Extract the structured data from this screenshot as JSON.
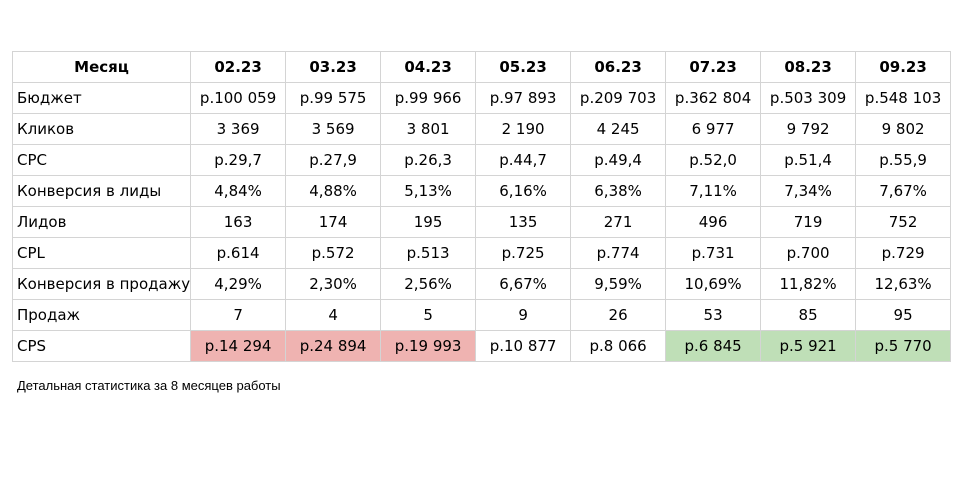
{
  "table": {
    "header": [
      "Месяц",
      "02.23",
      "03.23",
      "04.23",
      "05.23",
      "06.23",
      "07.23",
      "08.23",
      "09.23"
    ],
    "rows": [
      {
        "label": "Бюджет",
        "values": [
          "р.100 059",
          "р.99 575",
          "р.99 966",
          "р.97 893",
          "р.209 703",
          "р.362 804",
          "р.503 309",
          "р.548 103"
        ]
      },
      {
        "label": "Кликов",
        "values": [
          "3 369",
          "3 569",
          "3 801",
          "2 190",
          "4 245",
          "6 977",
          "9 792",
          "9 802"
        ]
      },
      {
        "label": "CPC",
        "values": [
          "р.29,7",
          "р.27,9",
          "р.26,3",
          "р.44,7",
          "р.49,4",
          "р.52,0",
          "р.51,4",
          "р.55,9"
        ]
      },
      {
        "label": "Конверсия в лиды",
        "values": [
          "4,84%",
          "4,88%",
          "5,13%",
          "6,16%",
          "6,38%",
          "7,11%",
          "7,34%",
          "7,67%"
        ]
      },
      {
        "label": "Лидов",
        "values": [
          "163",
          "174",
          "195",
          "135",
          "271",
          "496",
          "719",
          "752"
        ]
      },
      {
        "label": "CPL",
        "values": [
          "р.614",
          "р.572",
          "р.513",
          "р.725",
          "р.774",
          "р.731",
          "р.700",
          "р.729"
        ]
      },
      {
        "label": "Конверсия в продажу",
        "values": [
          "4,29%",
          "2,30%",
          "2,56%",
          "6,67%",
          "9,59%",
          "10,69%",
          "11,82%",
          "12,63%"
        ]
      },
      {
        "label": "Продаж",
        "values": [
          "7",
          "4",
          "5",
          "9",
          "26",
          "53",
          "85",
          "95"
        ]
      },
      {
        "label": "CPS",
        "values": [
          "р.14 294",
          "р.24 894",
          "р.19 993",
          "р.10 877",
          "р.8 066",
          "р.6 845",
          "р.5 921",
          "р.5 770"
        ]
      }
    ],
    "cps_highlight": [
      "red",
      "red",
      "red",
      "none",
      "none",
      "green",
      "green",
      "green"
    ],
    "colors": {
      "red": "#efb3b1",
      "green": "#bfdfb7",
      "border": "#d4d4d4"
    }
  },
  "caption": "Детальная статистика за 8 месяцев работы"
}
